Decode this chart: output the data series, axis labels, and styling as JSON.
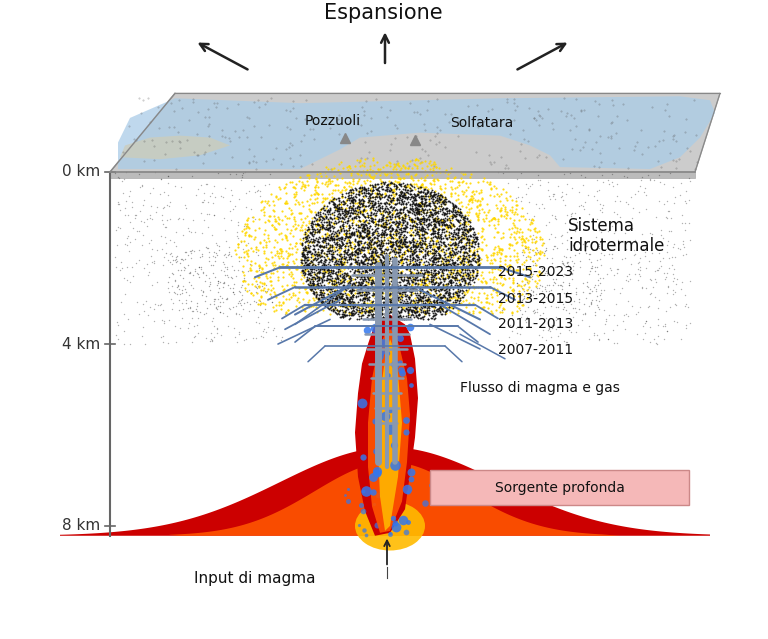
{
  "bg_color": "#ffffff",
  "espansione_text": "Espansione",
  "pozzuoli_text": "Pozzuoli",
  "solfatara_text": "Solfatara",
  "sistema_text": "Sistema\nidrotermale",
  "flusso_text": "Flusso di magma e gas",
  "sorgente_text": "Sorgente profonda",
  "input_text": "Input di magma",
  "depth_labels": [
    "0 km",
    "4 km",
    "8 km"
  ],
  "plate_color": "#cccccc",
  "plate_edge_color": "#aaaaaa",
  "plate_water_color": "#aacce8",
  "yellow_color": "#FFD700",
  "crack_color": "#5878aa",
  "crack_gray": "#8898b0",
  "magma_red": "#cc0000",
  "magma_orange": "#ff5500",
  "magma_yellow": "#ffbb00",
  "sorgente_bg": "#f5b8b8",
  "blue_bubble": "#3377ee"
}
